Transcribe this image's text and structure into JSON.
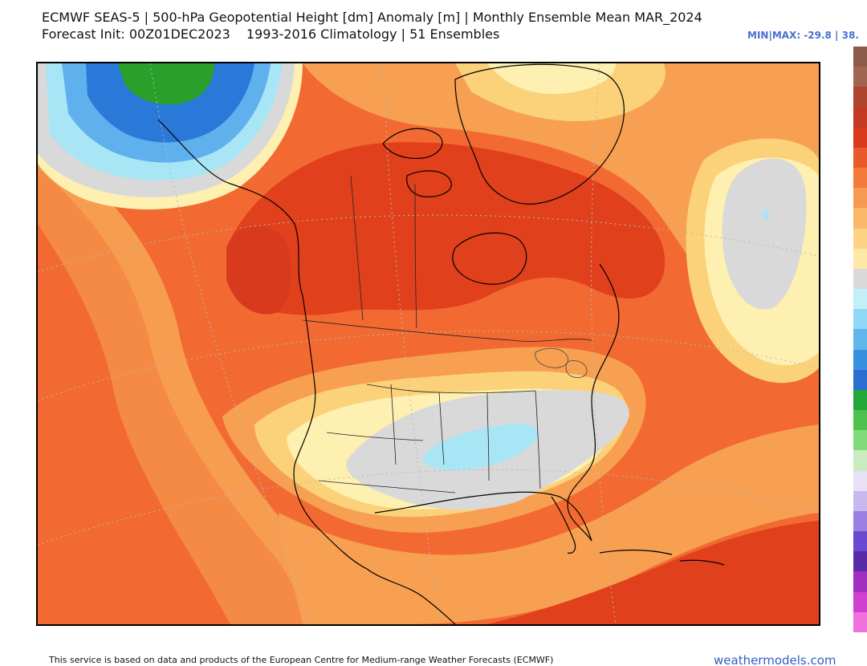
{
  "header": {
    "title": "ECMWF SEAS-5 | 500-hPa Geopotential Height [dm] Anomaly [m] | Monthly Ensemble Mean MAR_2024",
    "init": "Forecast Init: 00Z01DEC2023",
    "climatology": "1993-2016 Climatology | 51 Ensembles",
    "minmax": "MIN|MAX: -29.8 | 38."
  },
  "footer": {
    "credit": "This service is based on data and products of the European Centre for Medium-range Weather Forecasts (ECMWF)",
    "brand": "weathermodels.com"
  },
  "colors": {
    "strong_positive": "#e0401c",
    "positive": "#f26a32",
    "moderate_positive": "#f7a052",
    "weak_positive": "#fbd27a",
    "slight_positive": "#fdf0b0",
    "near_zero": "#d9d9d9",
    "slight_negative": "#a8e6f5",
    "negative": "#5fb0ec",
    "strong_negative": "#2a78d8",
    "very_negative": "#2aa02a"
  },
  "colorbar": [
    "#8b5a4a",
    "#a06550",
    "#b0452e",
    "#c23a22",
    "#d83a1e",
    "#e85a2a",
    "#f27a3a",
    "#f59a50",
    "#f8b868",
    "#fbd382",
    "#fde8a5",
    "#d9d9d9",
    "#c2f0fa",
    "#90d8f5",
    "#5fb7ee",
    "#3a90e0",
    "#2a6fd0",
    "#22a83a",
    "#4cc24c",
    "#80dc7a",
    "#c8ecc0",
    "#e8e0f5",
    "#c8b8ec",
    "#9a80e0",
    "#6a4ad0",
    "#5a2aa8",
    "#a030c0",
    "#d040d0",
    "#f070e0"
  ]
}
